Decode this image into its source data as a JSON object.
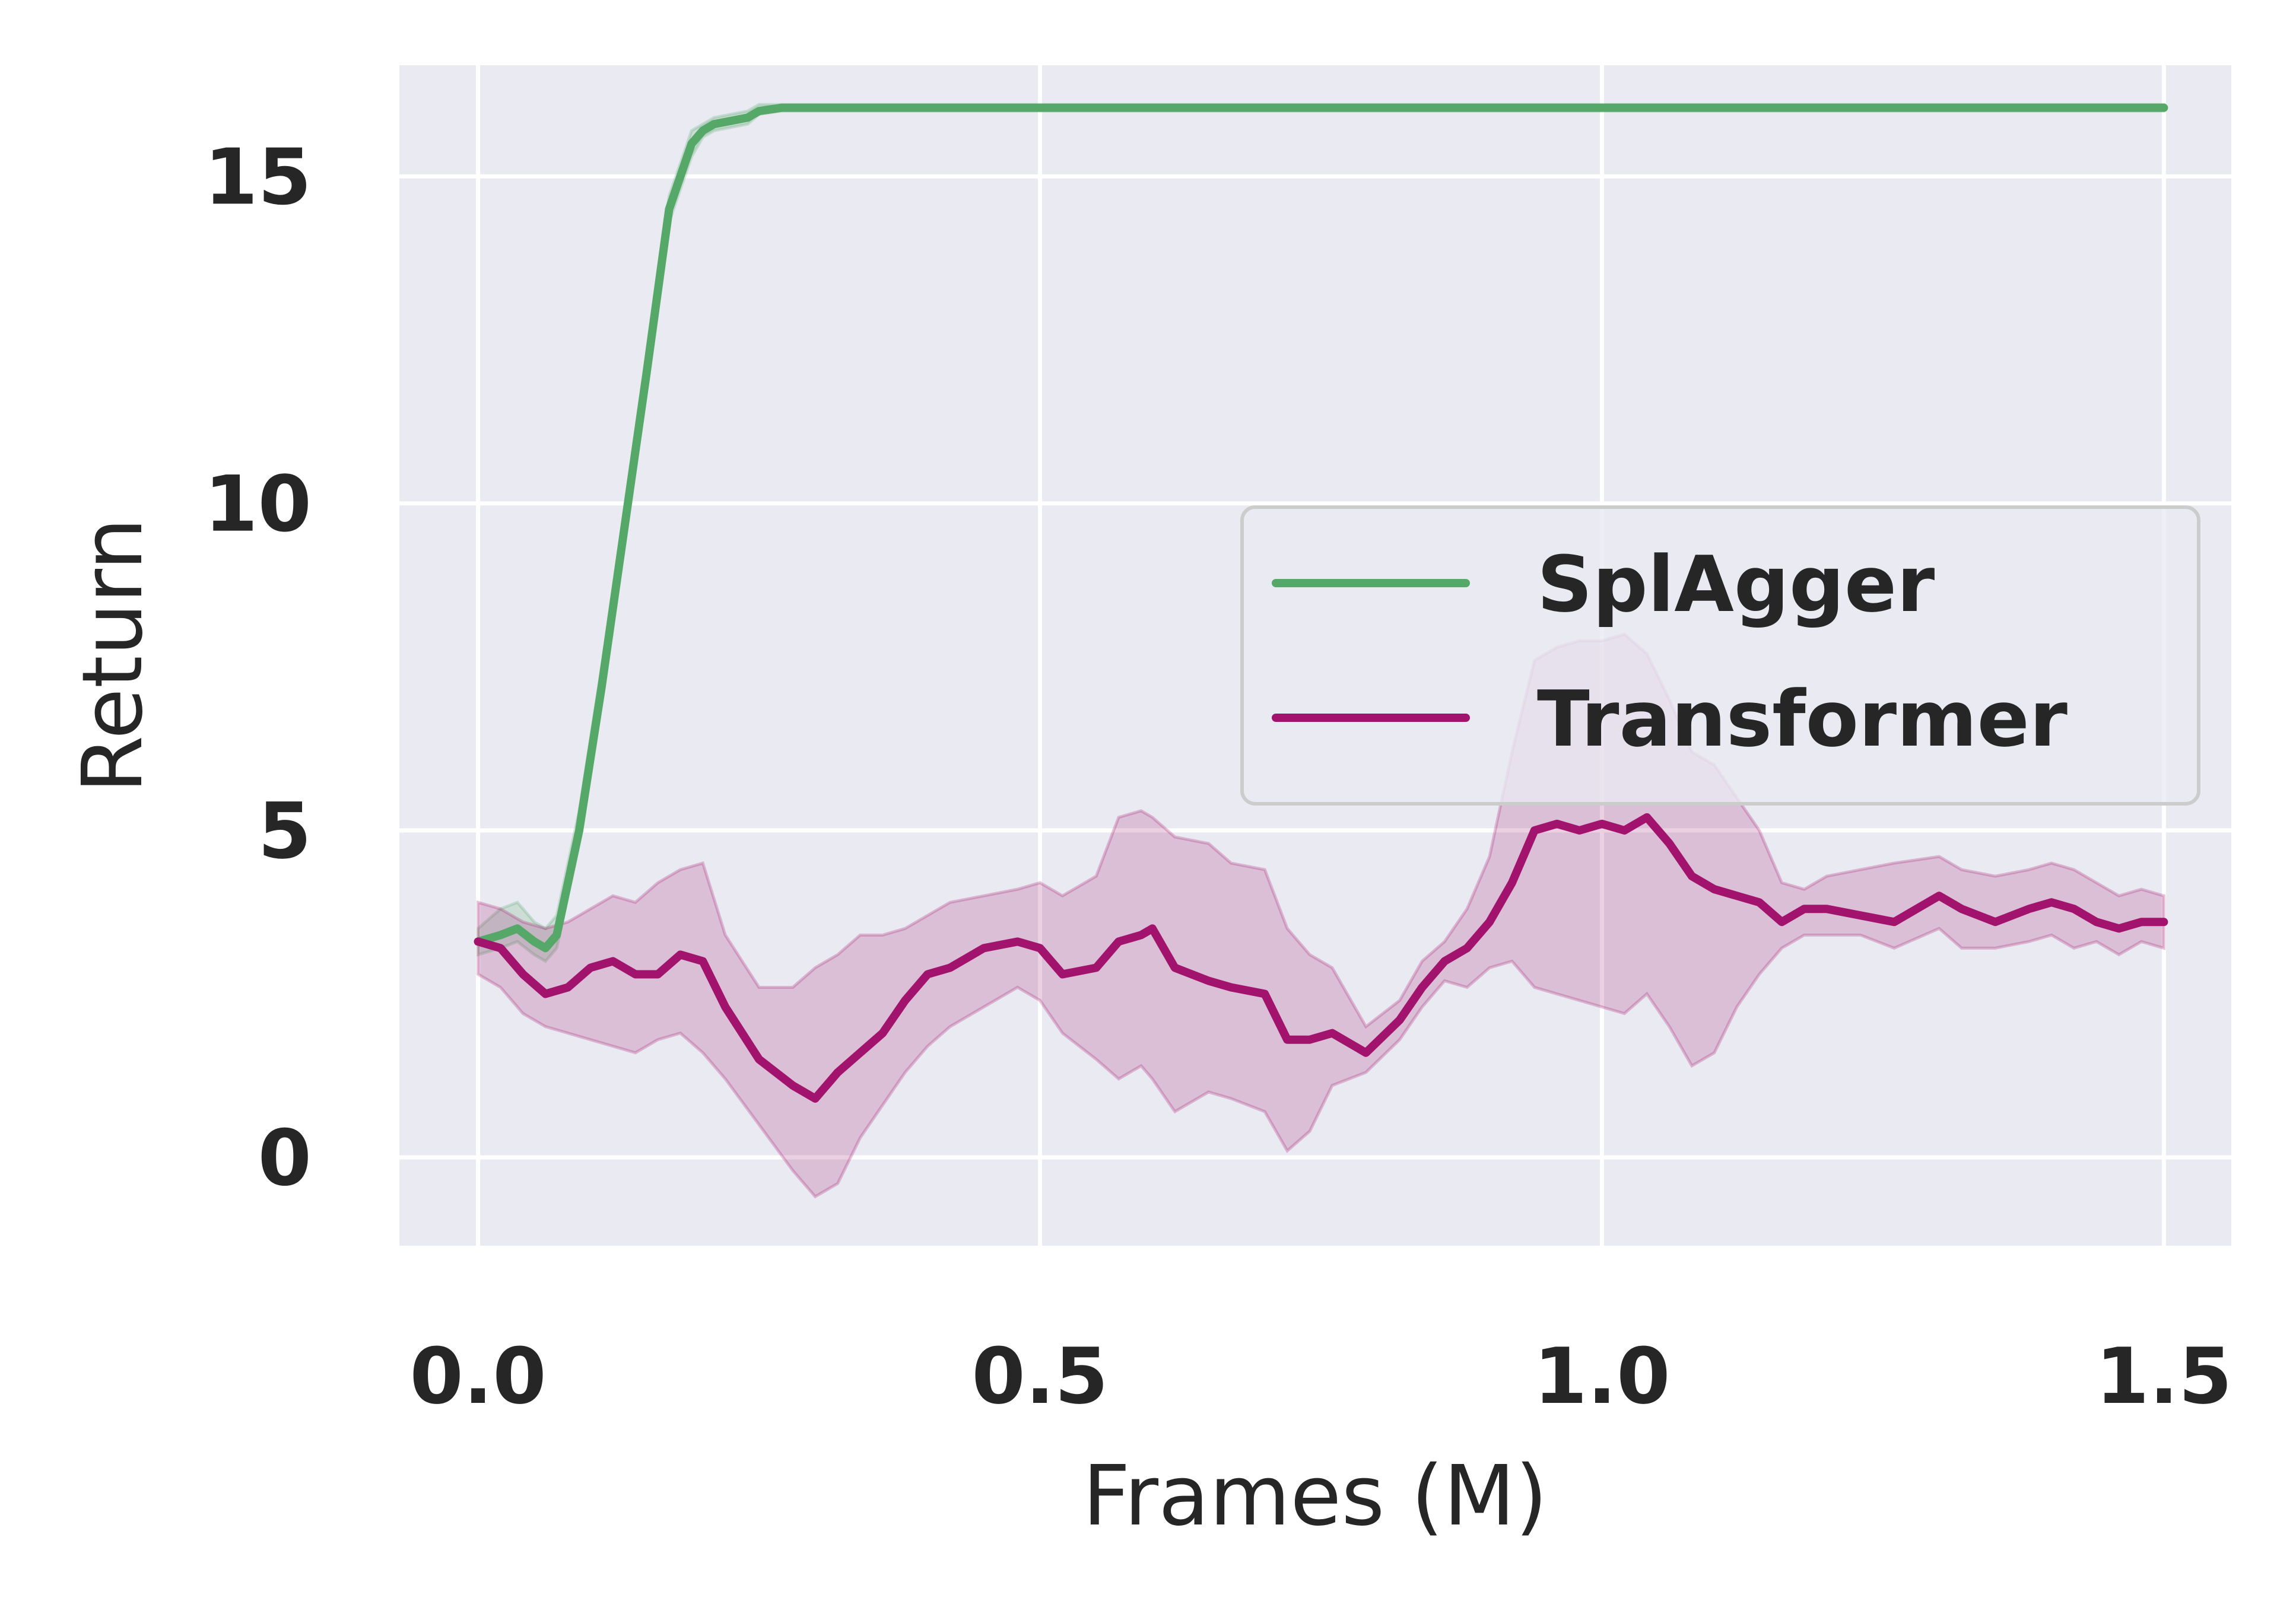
{
  "chart_data": {
    "type": "line",
    "xlabel": "Frames (M)",
    "ylabel": "Return",
    "xlim": [
      -0.07,
      1.56
    ],
    "ylim": [
      -1.35,
      16.7
    ],
    "xticks": [
      0.0,
      0.5,
      1.0,
      1.5
    ],
    "xtick_labels": [
      "0.0",
      "0.5",
      "1.0",
      "1.5"
    ],
    "yticks": [
      0,
      5,
      10,
      15
    ],
    "ytick_labels": [
      "0",
      "5",
      "10",
      "15"
    ],
    "grid": true,
    "legend_position": "center-right",
    "background_color": "#EAEAF2",
    "series": [
      {
        "name": "SplAgger",
        "color": "#55A868",
        "x": [
          0.0,
          0.02,
          0.035,
          0.05,
          0.06,
          0.07,
          0.09,
          0.11,
          0.13,
          0.15,
          0.17,
          0.19,
          0.2,
          0.21,
          0.24,
          0.25,
          0.27,
          0.3,
          0.4,
          0.5,
          1.0,
          1.5
        ],
        "y": [
          3.3,
          3.4,
          3.5,
          3.3,
          3.2,
          3.4,
          5.0,
          7.2,
          9.6,
          12.0,
          14.5,
          15.5,
          15.7,
          15.8,
          15.9,
          16.0,
          16.05,
          16.05,
          16.05,
          16.05,
          16.05,
          16.05
        ],
        "lower": [
          3.1,
          3.2,
          3.3,
          3.1,
          3.0,
          3.2,
          4.8,
          7.0,
          9.4,
          11.8,
          14.3,
          15.3,
          15.6,
          15.7,
          15.8,
          15.95,
          16.0,
          16.0,
          16.0,
          16.0,
          16.0,
          16.0
        ],
        "upper": [
          3.5,
          3.8,
          3.9,
          3.6,
          3.5,
          3.7,
          5.3,
          7.5,
          9.8,
          12.2,
          14.7,
          15.7,
          15.8,
          15.9,
          16.0,
          16.1,
          16.1,
          16.1,
          16.1,
          16.1,
          16.1,
          16.1
        ]
      },
      {
        "name": "Transformer",
        "color": "#A2136D",
        "x": [
          0.0,
          0.02,
          0.04,
          0.06,
          0.08,
          0.1,
          0.12,
          0.14,
          0.16,
          0.18,
          0.2,
          0.22,
          0.25,
          0.28,
          0.3,
          0.32,
          0.34,
          0.36,
          0.38,
          0.4,
          0.42,
          0.45,
          0.48,
          0.5,
          0.52,
          0.55,
          0.57,
          0.59,
          0.6,
          0.62,
          0.65,
          0.67,
          0.7,
          0.72,
          0.74,
          0.76,
          0.79,
          0.82,
          0.84,
          0.86,
          0.88,
          0.9,
          0.92,
          0.94,
          0.96,
          0.98,
          1.0,
          1.02,
          1.04,
          1.06,
          1.08,
          1.1,
          1.12,
          1.14,
          1.16,
          1.18,
          1.2,
          1.23,
          1.26,
          1.3,
          1.32,
          1.35,
          1.38,
          1.4,
          1.42,
          1.44,
          1.46,
          1.48,
          1.5
        ],
        "y": [
          3.3,
          3.2,
          2.8,
          2.5,
          2.6,
          2.9,
          3.0,
          2.8,
          2.8,
          3.1,
          3.0,
          2.3,
          1.5,
          1.1,
          0.9,
          1.3,
          1.6,
          1.9,
          2.4,
          2.8,
          2.9,
          3.2,
          3.3,
          3.2,
          2.8,
          2.9,
          3.3,
          3.4,
          3.5,
          2.9,
          2.7,
          2.6,
          2.5,
          1.8,
          1.8,
          1.9,
          1.6,
          2.1,
          2.6,
          3.0,
          3.2,
          3.6,
          4.2,
          5.0,
          5.1,
          5.0,
          5.1,
          5.0,
          5.2,
          4.8,
          4.3,
          4.1,
          4.0,
          3.9,
          3.6,
          3.8,
          3.8,
          3.7,
          3.6,
          4.0,
          3.8,
          3.6,
          3.8,
          3.9,
          3.8,
          3.6,
          3.5,
          3.6,
          3.6
        ],
        "lower": [
          2.8,
          2.6,
          2.2,
          2.0,
          1.9,
          1.8,
          1.7,
          1.6,
          1.8,
          1.9,
          1.6,
          1.2,
          0.5,
          -0.2,
          -0.6,
          -0.4,
          0.3,
          0.8,
          1.3,
          1.7,
          2.0,
          2.3,
          2.6,
          2.4,
          1.9,
          1.5,
          1.2,
          1.4,
          1.2,
          0.7,
          1.0,
          0.9,
          0.7,
          0.1,
          0.4,
          1.1,
          1.3,
          1.8,
          2.3,
          2.7,
          2.6,
          2.9,
          3.0,
          2.6,
          2.5,
          2.4,
          2.3,
          2.2,
          2.5,
          2.0,
          1.4,
          1.6,
          2.3,
          2.8,
          3.2,
          3.4,
          3.4,
          3.4,
          3.2,
          3.5,
          3.2,
          3.2,
          3.3,
          3.4,
          3.2,
          3.3,
          3.1,
          3.3,
          3.2
        ],
        "upper": [
          3.9,
          3.8,
          3.6,
          3.5,
          3.6,
          3.8,
          4.0,
          3.9,
          4.2,
          4.4,
          4.5,
          3.4,
          2.6,
          2.6,
          2.9,
          3.1,
          3.4,
          3.4,
          3.5,
          3.7,
          3.9,
          4.0,
          4.1,
          4.2,
          4.0,
          4.3,
          5.2,
          5.3,
          5.2,
          4.9,
          4.8,
          4.5,
          4.4,
          3.5,
          3.1,
          2.9,
          2.0,
          2.4,
          3.0,
          3.3,
          3.8,
          4.6,
          6.2,
          7.6,
          7.8,
          7.9,
          7.9,
          8.0,
          7.7,
          7.0,
          6.2,
          6.0,
          5.5,
          5.0,
          4.2,
          4.1,
          4.3,
          4.4,
          4.5,
          4.6,
          4.4,
          4.3,
          4.4,
          4.5,
          4.4,
          4.2,
          4.0,
          4.1,
          4.0
        ]
      }
    ]
  }
}
